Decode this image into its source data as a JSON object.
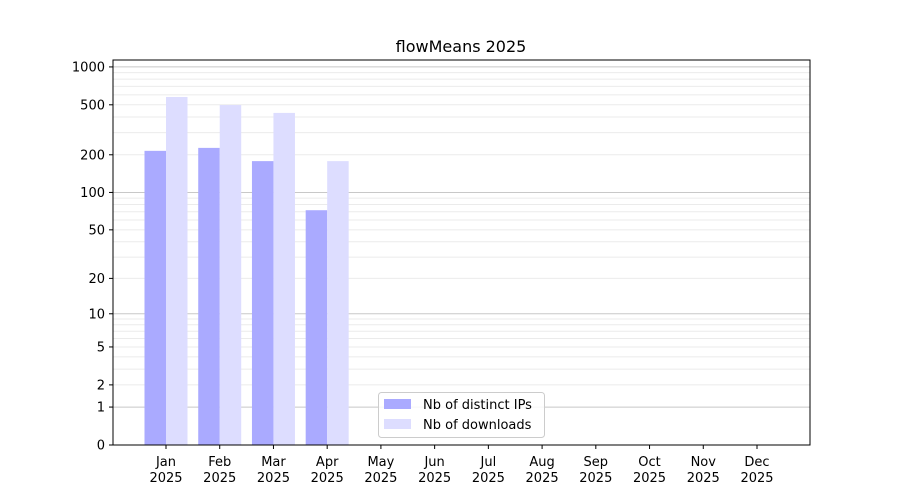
{
  "chart_data": {
    "type": "bar",
    "title": "flowMeans 2025",
    "xlabel": "",
    "ylabel": "",
    "yscale": "log(1+y)",
    "ylim": [
      0,
      1135
    ],
    "grid": true,
    "legend_placement": "lower-center",
    "categories": [
      "Jan\n2025",
      "Feb\n2025",
      "Mar\n2025",
      "Apr\n2025",
      "May\n2025",
      "Jun\n2025",
      "Jul\n2025",
      "Aug\n2025",
      "Sep\n2025",
      "Oct\n2025",
      "Nov\n2025",
      "Dec\n2025"
    ],
    "yticks": [
      0,
      1,
      2,
      5,
      10,
      20,
      50,
      100,
      200,
      500,
      1000
    ],
    "series": [
      {
        "name": "Nb of distinct IPs",
        "color": "#aaaaff",
        "values": [
          215,
          227,
          178,
          72,
          null,
          null,
          null,
          null,
          null,
          null,
          null,
          null
        ]
      },
      {
        "name": "Nb of downloads",
        "color": "#ddddff",
        "values": [
          577,
          498,
          431,
          178,
          null,
          null,
          null,
          null,
          null,
          null,
          null,
          null
        ]
      }
    ]
  }
}
